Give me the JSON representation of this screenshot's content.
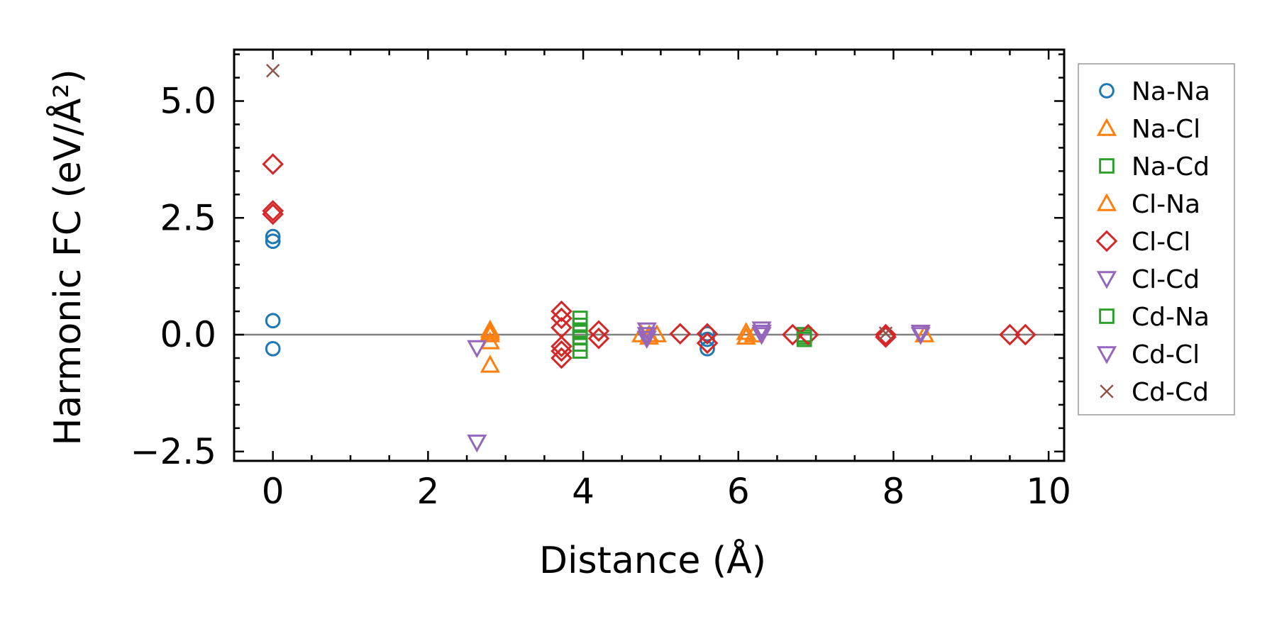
{
  "chart_data": {
    "type": "scatter",
    "xlabel": "Distance (Å)",
    "ylabel": "Harmonic FC (eV/Å²)",
    "xlim": [
      -0.5,
      10.2
    ],
    "ylim": [
      -2.7,
      6.1
    ],
    "xticks": [
      0,
      2,
      4,
      6,
      8,
      10
    ],
    "xtick_labels": [
      "0",
      "2",
      "4",
      "6",
      "8",
      "10"
    ],
    "yticks": [
      -2.5,
      0.0,
      2.5,
      5.0
    ],
    "ytick_labels": [
      "−2.5",
      "0.0",
      "2.5",
      "5.0"
    ],
    "grid": false,
    "legend_position": "outside-right",
    "reference_line": {
      "y": 0,
      "color": "#808080"
    },
    "series": [
      {
        "name": "Na-Na",
        "marker": "circle",
        "color": "#1f77b4",
        "points": [
          [
            0,
            2.1
          ],
          [
            0,
            2.0
          ],
          [
            0,
            0.3
          ],
          [
            0,
            -0.3
          ],
          [
            5.6,
            0.02
          ],
          [
            5.6,
            -0.1
          ],
          [
            5.6,
            -0.3
          ]
        ]
      },
      {
        "name": "Na-Cl",
        "marker": "triangle-up",
        "color": "#ff7f0e",
        "points": [
          [
            2.8,
            0.1
          ],
          [
            2.8,
            0.0
          ],
          [
            2.8,
            -0.15
          ],
          [
            2.8,
            -0.65
          ],
          [
            4.85,
            0.0
          ],
          [
            4.85,
            -0.05
          ],
          [
            6.1,
            0.05
          ],
          [
            6.1,
            -0.05
          ],
          [
            8.4,
            0.0
          ]
        ]
      },
      {
        "name": "Na-Cd",
        "marker": "square",
        "color": "#2ca02c",
        "points": [
          [
            3.96,
            0.35
          ],
          [
            3.96,
            0.2
          ],
          [
            3.96,
            0.05
          ],
          [
            3.96,
            -0.05
          ],
          [
            3.96,
            -0.2
          ],
          [
            3.96,
            -0.35
          ],
          [
            6.85,
            0.0
          ],
          [
            6.85,
            -0.05
          ]
        ]
      },
      {
        "name": "Cl-Na",
        "marker": "triangle-up",
        "color": "#ff7f0e",
        "points": [
          [
            2.8,
            0.05
          ],
          [
            4.75,
            0.0
          ],
          [
            4.95,
            0.0
          ],
          [
            6.2,
            0.0
          ]
        ]
      },
      {
        "name": "Cl-Cl",
        "marker": "diamond",
        "color": "#d62728",
        "points": [
          [
            0,
            3.65
          ],
          [
            0,
            2.65
          ],
          [
            0,
            2.58
          ],
          [
            3.72,
            0.5
          ],
          [
            3.72,
            0.35
          ],
          [
            3.72,
            0.15
          ],
          [
            3.72,
            -0.25
          ],
          [
            3.72,
            -0.35
          ],
          [
            3.72,
            -0.5
          ],
          [
            4.2,
            0.08
          ],
          [
            4.2,
            -0.08
          ],
          [
            5.25,
            0.02
          ],
          [
            5.6,
            0.02
          ],
          [
            5.6,
            -0.18
          ],
          [
            6.7,
            0.0
          ],
          [
            6.9,
            0.0
          ],
          [
            7.9,
            0.0
          ],
          [
            7.9,
            -0.05
          ],
          [
            9.5,
            0.0
          ],
          [
            9.7,
            0.0
          ]
        ]
      },
      {
        "name": "Cl-Cd",
        "marker": "triangle-down",
        "color": "#9467bd",
        "points": [
          [
            2.63,
            -0.28
          ],
          [
            2.63,
            -2.3
          ],
          [
            4.82,
            0.1
          ],
          [
            4.82,
            -0.08
          ],
          [
            6.3,
            0.12
          ],
          [
            6.3,
            0.0
          ],
          [
            8.35,
            0.05
          ]
        ]
      },
      {
        "name": "Cd-Na",
        "marker": "square",
        "color": "#2ca02c",
        "points": [
          [
            3.96,
            0.1
          ],
          [
            6.85,
            -0.1
          ]
        ]
      },
      {
        "name": "Cd-Cl",
        "marker": "triangle-down",
        "color": "#9467bd",
        "points": [
          [
            4.82,
            0.0
          ],
          [
            6.3,
            0.05
          ],
          [
            8.35,
            0.0
          ]
        ]
      },
      {
        "name": "Cd-Cd",
        "marker": "x",
        "color": "#8c564b",
        "points": [
          [
            0,
            5.65
          ],
          [
            7.9,
            0.03
          ]
        ]
      }
    ]
  }
}
